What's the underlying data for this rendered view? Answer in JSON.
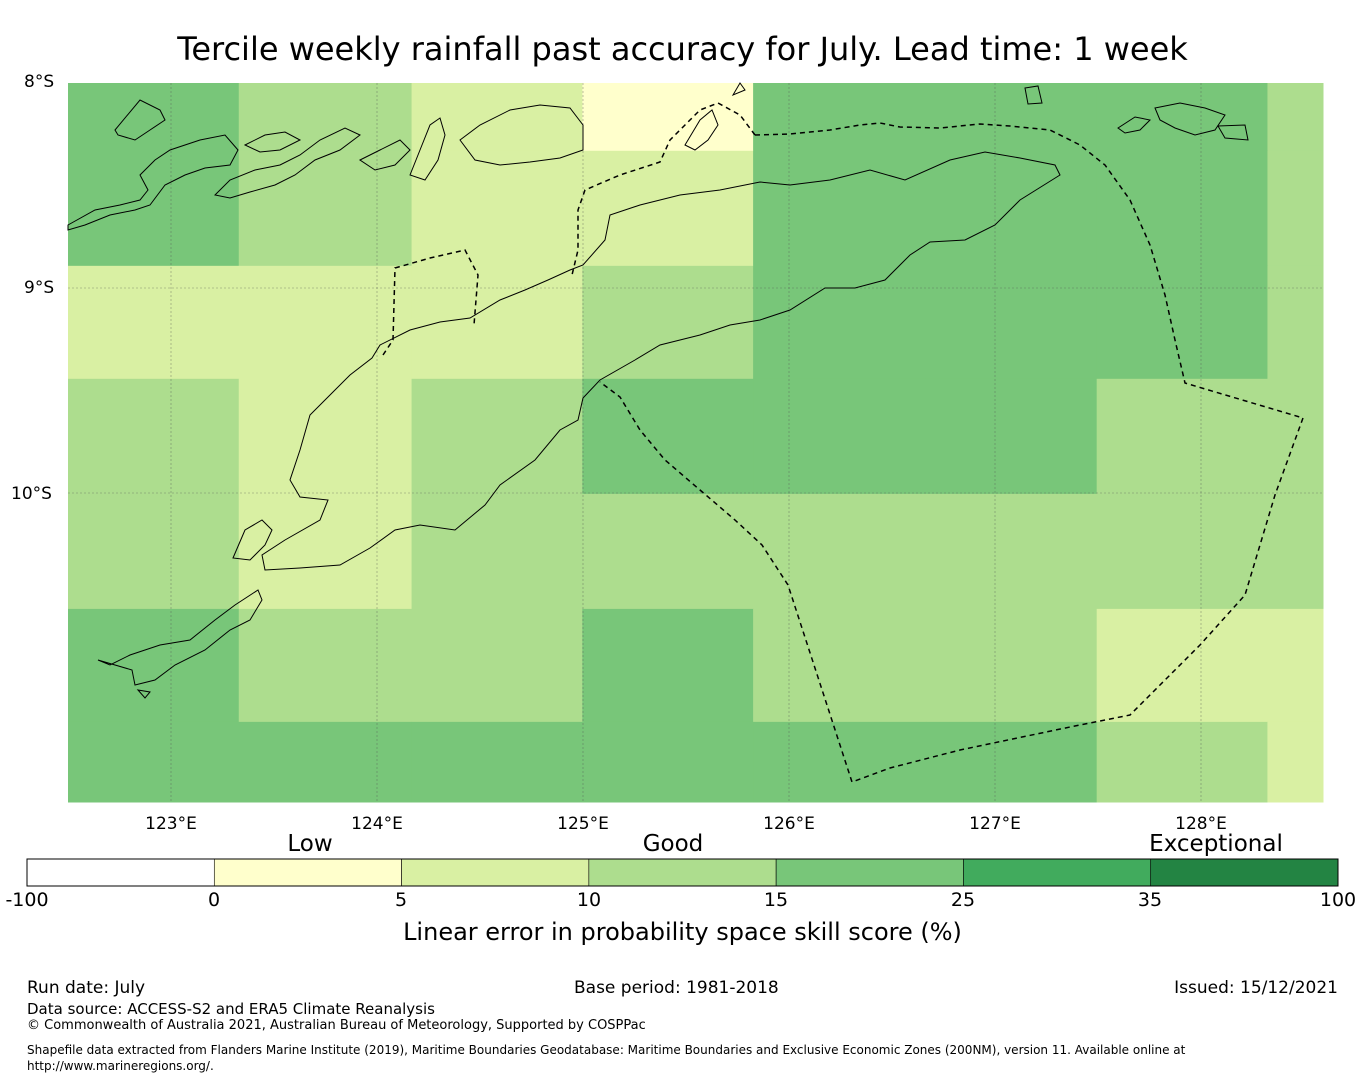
{
  "title": "Tercile weekly rainfall past accuracy for July. Lead time: 1 week",
  "map": {
    "lat_labels": [
      "8°S",
      "9°S",
      "10°S"
    ],
    "lon_labels": [
      "123°E",
      "124°E",
      "125°E",
      "126°E",
      "127°E",
      "128°E"
    ],
    "extent": {
      "lon_min": 122.5,
      "lon_max": 128.6,
      "lat_max": -8.0,
      "lat_min": -11.5
    },
    "skill_grid": {
      "lon_edges": [
        122.5,
        123.33,
        124.17,
        125.0,
        125.83,
        126.67,
        127.5,
        128.33,
        128.6
      ],
      "lat_edges": [
        -8.0,
        -8.33,
        -8.89,
        -9.44,
        -10.0,
        -10.56,
        -11.11,
        -11.5
      ],
      "values": [
        [
          20,
          12,
          8,
          2,
          20,
          20,
          20,
          12
        ],
        [
          20,
          12,
          8,
          8,
          20,
          20,
          20,
          12
        ],
        [
          8,
          8,
          8,
          12,
          20,
          20,
          20,
          12
        ],
        [
          12,
          8,
          12,
          20,
          20,
          20,
          12,
          12
        ],
        [
          12,
          8,
          12,
          12,
          12,
          12,
          12,
          12
        ],
        [
          20,
          12,
          12,
          20,
          12,
          12,
          8,
          8
        ],
        [
          20,
          20,
          20,
          20,
          20,
          20,
          12,
          8
        ]
      ]
    },
    "colors": {
      "-100_0": "#ffffff",
      "0_5": "#ffffcc",
      "5_10": "#d9f0a3",
      "10_15": "#addd8e",
      "15_25": "#78c679",
      "25_35": "#41ab5d",
      "35_100": "#238443"
    }
  },
  "colorbar": {
    "category_labels": [
      "Low",
      "Good",
      "Exceptional"
    ],
    "tick_labels": [
      "-100",
      "0",
      "5",
      "10",
      "15",
      "25",
      "35",
      "100"
    ],
    "colors": [
      "#ffffff",
      "#ffffcc",
      "#d9f0a3",
      "#addd8e",
      "#78c679",
      "#41ab5d",
      "#238443"
    ],
    "label": "Linear error in probability space skill score (%)"
  },
  "footer": {
    "run_date": "Run date: July",
    "base_period": "Base period: 1981-2018",
    "issued": "Issued: 15/12/2021",
    "data_source": "Data source: ACCESS-S2 and ERA5 Climate Reanalysis",
    "copyright": "© Commonwealth of Australia 2021, Australian Bureau of Meteorology, Supported by COSPPac",
    "shapefile_note": "Shapefile data extracted from Flanders Marine Institute (2019), Maritime Boundaries Geodatabase: Maritime Boundaries and Exclusive Economic Zones (200NM), version 11. Available online at http://www.marineregions.org/."
  }
}
